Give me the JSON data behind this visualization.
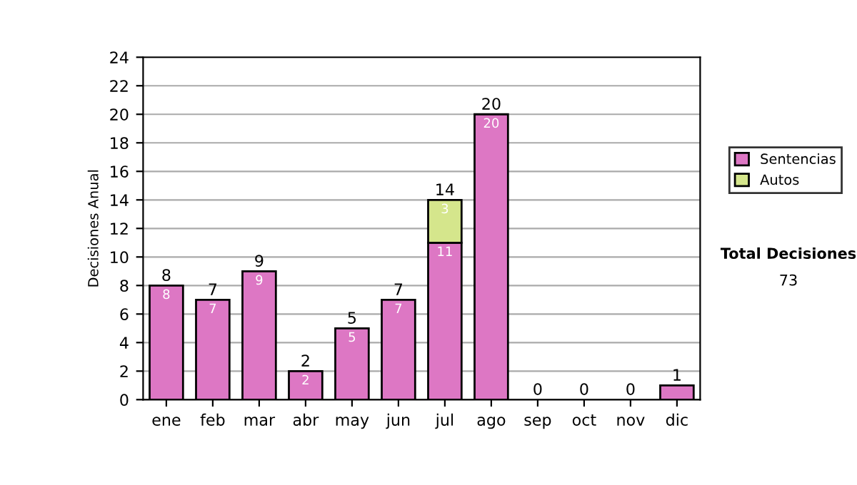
{
  "chart_data": {
    "type": "bar",
    "stacked": true,
    "ylabel": "Decisiones Anual",
    "categories": [
      "ene",
      "feb",
      "mar",
      "abr",
      "may",
      "jun",
      "jul",
      "ago",
      "sep",
      "oct",
      "nov",
      "dic"
    ],
    "series": [
      {
        "name": "Sentencias",
        "color": "#dd77c4",
        "values": [
          8,
          7,
          9,
          2,
          5,
          7,
          11,
          20,
          0,
          0,
          0,
          1
        ],
        "value_labels": [
          "8",
          "7",
          "9",
          "2",
          "5",
          "7",
          "11",
          "20",
          null,
          null,
          null,
          null
        ]
      },
      {
        "name": "Autos",
        "color": "#d5e68c",
        "values": [
          0,
          0,
          0,
          0,
          0,
          0,
          3,
          0,
          0,
          0,
          0,
          0
        ],
        "value_labels": [
          null,
          null,
          null,
          null,
          null,
          null,
          "3",
          null,
          null,
          null,
          null,
          null
        ]
      }
    ],
    "totals": [
      "8",
      "7",
      "9",
      "2",
      "5",
      "7",
      "14",
      "20",
      "0",
      "0",
      "0",
      "1"
    ],
    "ylim": [
      0,
      24
    ],
    "yticks": [
      0,
      2,
      4,
      6,
      8,
      10,
      12,
      14,
      16,
      18,
      20,
      22,
      24
    ],
    "grid": "y",
    "legend": "right",
    "annotations": [
      "Total Decisiones",
      "73"
    ]
  }
}
